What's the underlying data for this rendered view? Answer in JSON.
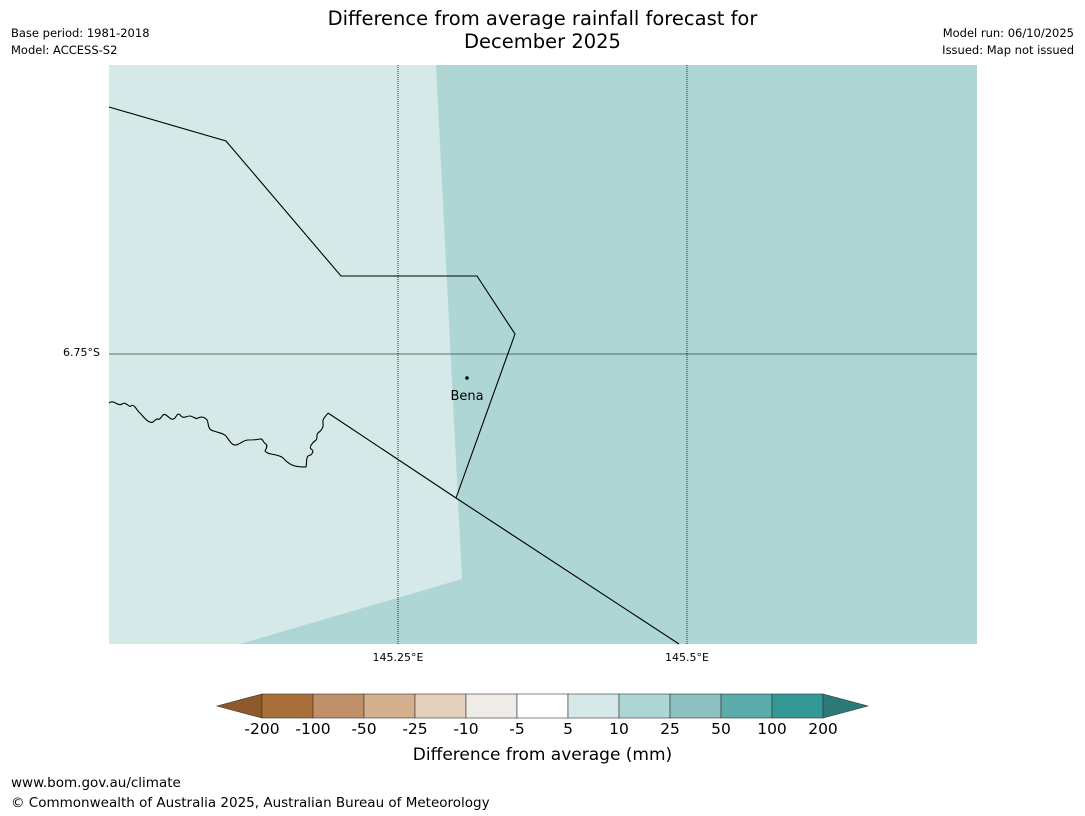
{
  "title": {
    "line1": "Difference from average rainfall forecast for",
    "line2": "December 2025"
  },
  "meta_left": {
    "base_period": "Base period: 1981-2018",
    "model": "Model: ACCESS-S2"
  },
  "meta_right": {
    "model_run": "Model run: 06/10/2025",
    "issued": "Issued: Map not issued"
  },
  "map": {
    "lat_label": "6.75°S",
    "lon_labels": [
      "145.25°E",
      "145.5°E"
    ],
    "place": {
      "name": "Bena"
    },
    "colors": {
      "light_band": "#d5e9e8",
      "medium_band": "#aed6d5",
      "border": "#000000",
      "gridline": "#000000"
    }
  },
  "colorbar": {
    "label": "Difference from average (mm)",
    "ticks": [
      "-200",
      "-100",
      "-50",
      "-25",
      "-10",
      "-5",
      "5",
      "10",
      "25",
      "50",
      "100",
      "200"
    ],
    "low_extend_color": "#8f5a2b",
    "high_extend_color": "#2b7a78",
    "colors": [
      "#a97039",
      "#c09068",
      "#d4b08f",
      "#e5cfbd",
      "#efebe7",
      "#ffffff",
      "#d5e9e8",
      "#aed6d5",
      "#8cc0bf",
      "#5aabaa",
      "#339996"
    ]
  },
  "footer": {
    "url": "www.bom.gov.au/climate",
    "copyright": "© Commonwealth of Australia 2025, Australian Bureau of Meteorology"
  }
}
